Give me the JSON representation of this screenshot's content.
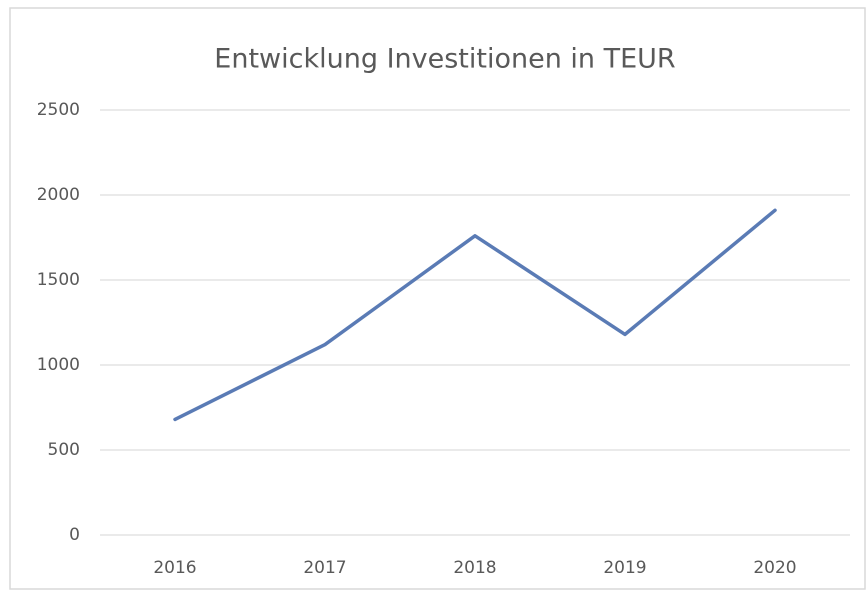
{
  "chart_data": {
    "type": "line",
    "title": "Entwicklung Investitionen in TEUR",
    "categories": [
      "2016",
      "2017",
      "2018",
      "2019",
      "2020"
    ],
    "series": [
      {
        "name": "Investitionen",
        "color": "#5a7bb5",
        "values": [
          680,
          1120,
          1760,
          1180,
          1910
        ]
      }
    ],
    "ylim": [
      0,
      2500
    ],
    "yticks": [
      0,
      500,
      1000,
      1500,
      2000,
      2500
    ],
    "grid": true
  }
}
